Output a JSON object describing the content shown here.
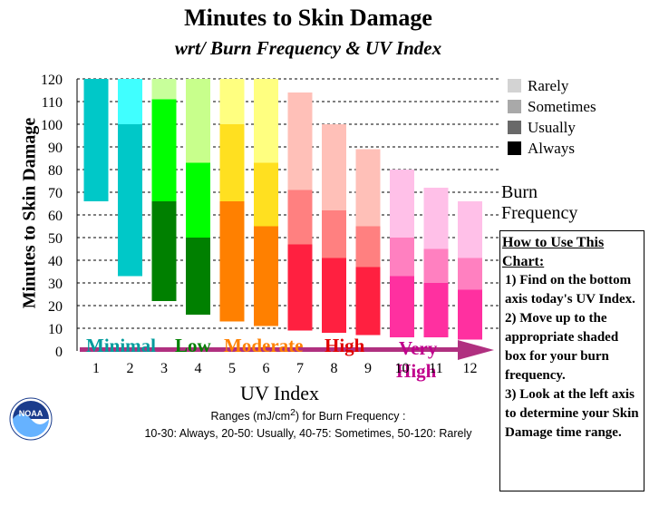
{
  "chart_data": {
    "type": "bar",
    "title": "Minutes to Skin Damage",
    "subtitle": "wrt/ Burn Frequency & UV Index",
    "xlabel": "UV Index",
    "ylabel": "Minutes to Skin Damage",
    "ylim": [
      0,
      120
    ],
    "yticks": [
      0,
      10,
      20,
      30,
      40,
      50,
      60,
      70,
      80,
      90,
      100,
      110,
      120
    ],
    "categories": [
      "1",
      "2",
      "3",
      "4",
      "5",
      "6",
      "7",
      "8",
      "9",
      "10",
      "11",
      "12"
    ],
    "grid": "horizontal dashed",
    "series": [
      {
        "name": "Rarely",
        "bottom": [
          66,
          100,
          111,
          83,
          100,
          83,
          71,
          62,
          55,
          50,
          45,
          41
        ],
        "top": [
          120,
          120,
          120,
          120,
          120,
          120,
          114,
          100,
          89,
          80,
          72,
          66
        ]
      },
      {
        "name": "Sometimes",
        "bottom": [
          66,
          33,
          66,
          50,
          66,
          55,
          47,
          41,
          37,
          33,
          30,
          27
        ],
        "top": [
          66,
          100,
          111,
          83,
          100,
          83,
          71,
          62,
          55,
          50,
          45,
          41
        ]
      },
      {
        "name": "Usually",
        "bottom": [
          66,
          33,
          22,
          16,
          13,
          11,
          9,
          8,
          7,
          6,
          6,
          5
        ],
        "top": [
          66,
          33,
          66,
          50,
          66,
          55,
          47,
          41,
          37,
          33,
          30,
          27
        ]
      }
    ],
    "category_colors": [
      [
        "#00c8c8",
        "#00c8c8",
        "#00c8c8"
      ],
      [
        "#40ffff",
        "#00c8c8",
        "#00c8c8"
      ],
      [
        "#c8ff9b",
        "#00ff00",
        "#008000"
      ],
      [
        "#c8ff8c",
        "#00ff00",
        "#008000"
      ],
      [
        "#ffff80",
        "#ffe020",
        "#ff8000"
      ],
      [
        "#ffff80",
        "#ffe020",
        "#ff8000"
      ],
      [
        "#ffc0b8",
        "#ff8080",
        "#ff2040"
      ],
      [
        "#ffc0b8",
        "#ff8080",
        "#ff2040"
      ],
      [
        "#ffc0b8",
        "#ff8080",
        "#ff2040"
      ],
      [
        "#ffc0e8",
        "#ff80c0",
        "#ff30a0"
      ],
      [
        "#ffc0e8",
        "#ff80c0",
        "#ff30a0"
      ],
      [
        "#ffc0e8",
        "#ff80c0",
        "#ff30a0"
      ]
    ],
    "always_colors": [
      "#00c8c8",
      "#00c8c8",
      "#008000",
      "#008000",
      "#c04000",
      "#c04000",
      "#c00000",
      "#c00000",
      "#c00000",
      "#c0008c",
      "#c0008c",
      "#c0008c"
    ],
    "uv_bands": [
      {
        "label": "Minimal",
        "from": 1,
        "to": 2.5,
        "color": "#009c9c"
      },
      {
        "label": "Low",
        "from": 2.5,
        "to": 4.5,
        "color": "#008000"
      },
      {
        "label": "Moderate",
        "from": 4.5,
        "to": 6.5,
        "color": "#ff8000"
      },
      {
        "label": "High",
        "from": 6.5,
        "to": 9.5,
        "color": "#e00000"
      },
      {
        "label": "Very High",
        "from": 9.5,
        "to": 12.5,
        "color": "#c0008c"
      }
    ]
  },
  "legend": {
    "items": [
      {
        "label": "Rarely",
        "color": "#d3d3d3"
      },
      {
        "label": "Sometimes",
        "color": "#a9a9a9"
      },
      {
        "label": "Usually",
        "color": "#696969"
      },
      {
        "label": "Always",
        "color": "#000000"
      }
    ],
    "caption": "Burn Frequency"
  },
  "howto": {
    "heading": "How to Use This Chart:",
    "step1": "1) Find on the bottom axis today's UV Index.",
    "step2": "2) Move up to the appropriate shaded box for your burn frequency.",
    "step3": "3) Look at the left axis to determine your Skin Damage time range."
  },
  "ranges": {
    "line1a": "Ranges (mJ/cm",
    "line1sup": "2",
    "line1b": ")  for Burn Frequency :",
    "line2": "10-30: Always,  20-50: Usually, 40-75: Sometimes, 50-120: Rarely"
  },
  "logo": {
    "text": "NOAA"
  }
}
